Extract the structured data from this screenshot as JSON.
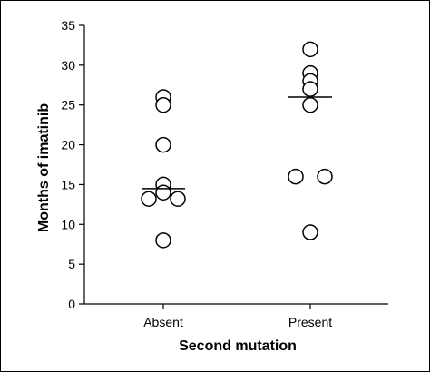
{
  "chart_data": {
    "type": "scatter",
    "title": "",
    "xlabel": "Second mutation",
    "ylabel": "Months of imatinib",
    "categories": [
      "Absent",
      "Present"
    ],
    "ylim": [
      0,
      35
    ],
    "yticks": [
      0,
      5,
      10,
      15,
      20,
      25,
      30,
      35
    ],
    "grid": false,
    "series": [
      {
        "category": "Absent",
        "points": [
          {
            "offset": 0,
            "y": 26
          },
          {
            "offset": 0,
            "y": 25
          },
          {
            "offset": 0,
            "y": 20
          },
          {
            "offset": 0,
            "y": 15
          },
          {
            "offset": 0,
            "y": 14
          },
          {
            "offset": -1,
            "y": 13.2
          },
          {
            "offset": 1,
            "y": 13.2
          },
          {
            "offset": 0,
            "y": 8
          }
        ],
        "median": 14.5
      },
      {
        "category": "Present",
        "points": [
          {
            "offset": 0,
            "y": 32
          },
          {
            "offset": 0,
            "y": 29
          },
          {
            "offset": 0,
            "y": 28
          },
          {
            "offset": 0,
            "y": 27
          },
          {
            "offset": 0,
            "y": 25
          },
          {
            "offset": -1,
            "y": 16
          },
          {
            "offset": 1,
            "y": 16
          },
          {
            "offset": 0,
            "y": 9
          }
        ],
        "median": 26
      }
    ],
    "colors": {
      "marker_stroke": "#000000",
      "marker_fill": "#ffffff",
      "axis": "#000000"
    }
  }
}
